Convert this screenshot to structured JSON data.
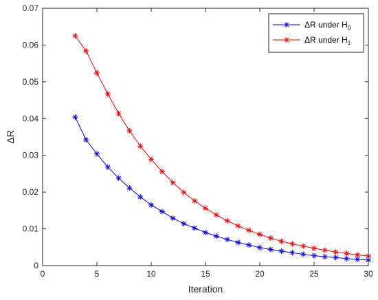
{
  "chart_data": {
    "type": "line",
    "xlabel": "Iteration",
    "ylabel": "ΔR",
    "xlim": [
      0,
      30
    ],
    "ylim": [
      0,
      0.07
    ],
    "xticks": [
      "0",
      "5",
      "10",
      "15",
      "20",
      "25",
      "30"
    ],
    "yticks": [
      "0",
      "0.01",
      "0.02",
      "0.03",
      "0.04",
      "0.05",
      "0.06",
      "0.07"
    ],
    "grid": false,
    "legend_position": "top-right",
    "x": [
      3,
      4,
      5,
      6,
      7,
      8,
      9,
      10,
      11,
      12,
      13,
      14,
      15,
      16,
      17,
      18,
      19,
      20,
      21,
      22,
      23,
      24,
      25,
      26,
      27,
      28,
      29,
      30
    ],
    "series": [
      {
        "name": "ΔR under H",
        "name_subscript": "0",
        "color": "#0000ff",
        "marker": "asterisk",
        "values": [
          0.0404,
          0.0342,
          0.0304,
          0.0268,
          0.0238,
          0.0211,
          0.0187,
          0.0165,
          0.0147,
          0.0129,
          0.0114,
          0.0102,
          0.009,
          0.008,
          0.0071,
          0.0063,
          0.0056,
          0.0049,
          0.0044,
          0.0039,
          0.0035,
          0.0031,
          0.0027,
          0.0024,
          0.0022,
          0.0019,
          0.0017,
          0.0015
        ]
      },
      {
        "name": "ΔR under H",
        "name_subscript": "1",
        "color": "#ff0000",
        "marker": "asterisk",
        "values": [
          0.0625,
          0.0584,
          0.0524,
          0.0467,
          0.0414,
          0.0367,
          0.0325,
          0.0289,
          0.0256,
          0.0226,
          0.0199,
          0.0176,
          0.0156,
          0.0138,
          0.0122,
          0.0108,
          0.0096,
          0.0085,
          0.0075,
          0.0066,
          0.0059,
          0.0053,
          0.0047,
          0.0042,
          0.0037,
          0.0033,
          0.0029,
          0.0026
        ]
      }
    ]
  }
}
